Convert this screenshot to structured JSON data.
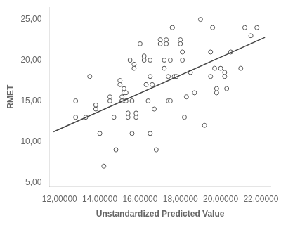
{
  "chart_data": {
    "type": "scatter",
    "xlabel": "Unstandardized Predicted Value",
    "ylabel": "RMET",
    "xlim": [
      11500,
      22500
    ],
    "ylim": [
      4.5,
      26.5
    ],
    "xticks": [
      {
        "value": 12000,
        "label": "12,00000"
      },
      {
        "value": 14000,
        "label": "14,00000"
      },
      {
        "value": 16000,
        "label": "16,00000"
      },
      {
        "value": 18000,
        "label": "18,00000"
      },
      {
        "value": 20000,
        "label": "20,00000"
      },
      {
        "value": 22000,
        "label": "22,00000"
      }
    ],
    "yticks": [
      {
        "value": 5.0,
        "label": "5,00"
      },
      {
        "value": 10.0,
        "label": "10,00"
      },
      {
        "value": 15.0,
        "label": "15,00"
      },
      {
        "value": 20.0,
        "label": "20,00"
      },
      {
        "value": 25.0,
        "label": "25,00"
      }
    ],
    "grid": false,
    "series": [
      {
        "type": "scatter",
        "color": "#555555",
        "marker": "open-circle",
        "x": [
          12800,
          12800,
          13300,
          13500,
          13800,
          13800,
          14000,
          14200,
          14500,
          14500,
          14700,
          14800,
          15000,
          15000,
          15100,
          15100,
          15100,
          15200,
          15200,
          15300,
          15300,
          15400,
          15400,
          15500,
          15600,
          15600,
          15700,
          15700,
          15800,
          15800,
          16000,
          16200,
          16200,
          16300,
          16400,
          16500,
          16500,
          16500,
          16600,
          16700,
          16800,
          17000,
          17000,
          17200,
          17200,
          17300,
          17300,
          17400,
          17400,
          17500,
          17500,
          17600,
          17600,
          17700,
          17800,
          18000,
          18000,
          18100,
          18100,
          18200,
          18300,
          18500,
          18700,
          19000,
          19200,
          19500,
          19500,
          19600,
          19700,
          19800,
          19800,
          20000,
          20200,
          20200,
          20300,
          20500,
          21000,
          21200,
          21500,
          21800
        ],
        "values": [
          15.0,
          13.0,
          13.0,
          18.0,
          14.0,
          14.5,
          11.0,
          7.0,
          15.0,
          15.5,
          13.0,
          9.0,
          17.0,
          17.5,
          15.0,
          15.0,
          15.5,
          16.0,
          16.5,
          15.0,
          16.0,
          13.0,
          13.5,
          20.0,
          15.0,
          11.0,
          19.0,
          19.5,
          13.0,
          13.5,
          22.0,
          20.0,
          20.5,
          17.0,
          15.0,
          18.0,
          20.0,
          11.0,
          17.0,
          14.0,
          9.0,
          22.0,
          22.5,
          20.0,
          19.0,
          22.0,
          22.5,
          18.0,
          15.0,
          20.0,
          15.0,
          24.0,
          24.0,
          18.0,
          18.0,
          22.0,
          22.5,
          21.0,
          20.0,
          13.0,
          15.5,
          18.5,
          16.0,
          25.0,
          12.0,
          21.0,
          18.0,
          24.0,
          19.0,
          16.0,
          16.5,
          19.0,
          18.0,
          18.5,
          16.5,
          21.0,
          19.0,
          24.0,
          23.0,
          24.0
        ]
      },
      {
        "type": "line",
        "color": "#444444",
        "line_style": "solid",
        "x": [
          11700,
          22200
        ],
        "values": [
          11.2,
          22.8
        ]
      }
    ]
  }
}
